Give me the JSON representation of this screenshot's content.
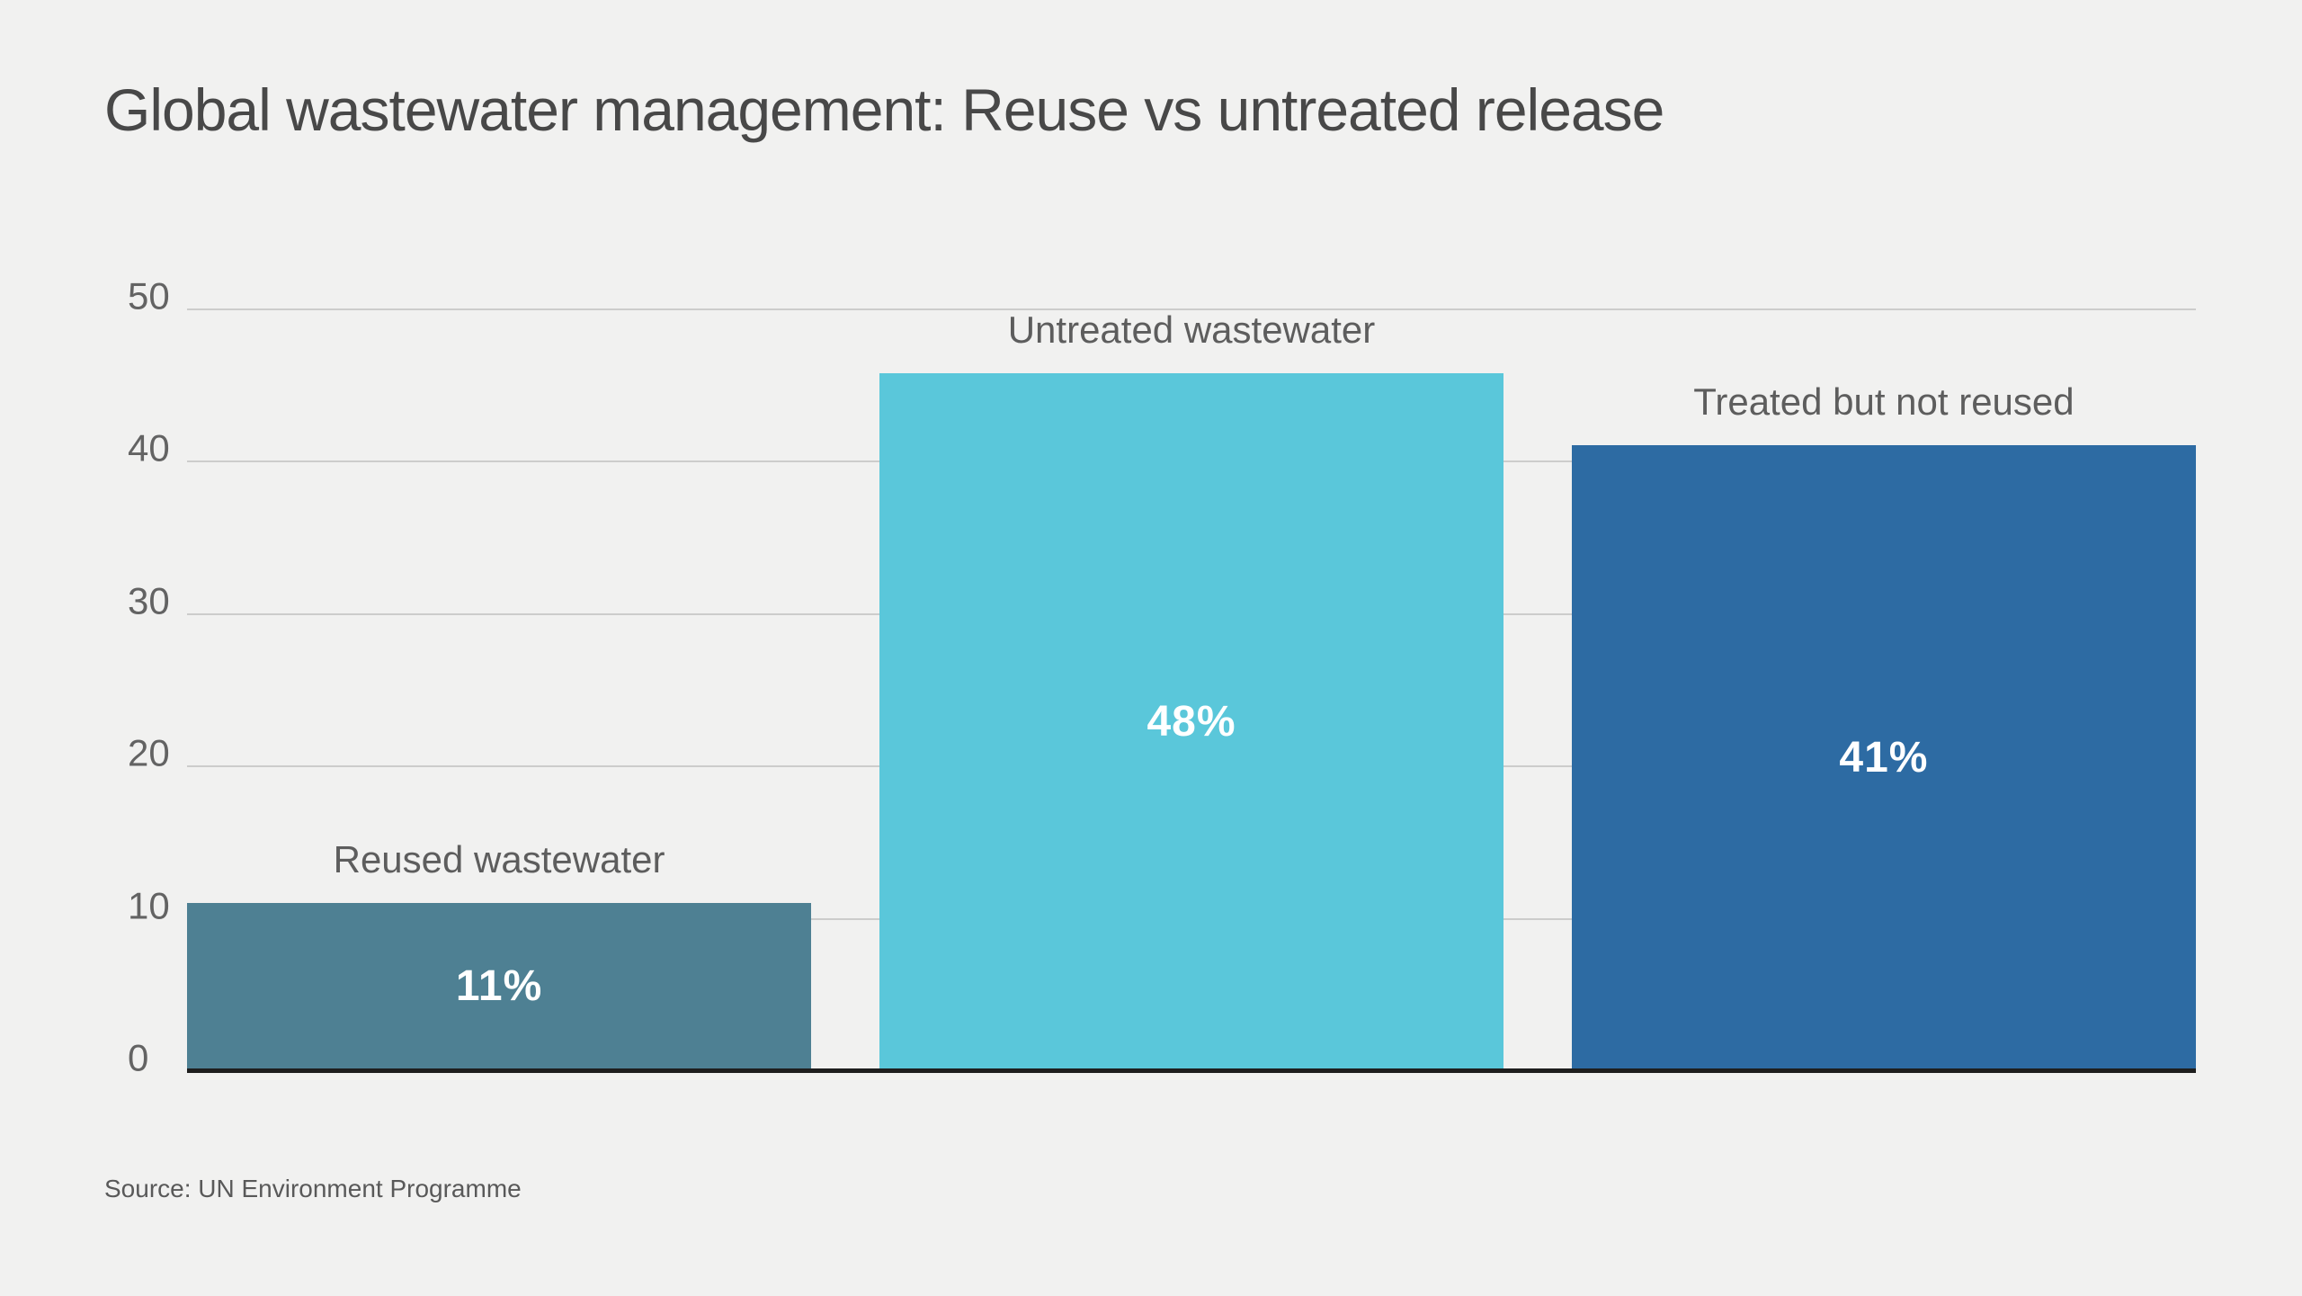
{
  "page": {
    "background_color": "#f1f1f0"
  },
  "chart_data": {
    "type": "bar",
    "title": "Global wastewater management: Reuse vs untreated release",
    "categories": [
      "Reused wastewater",
      "Untreated wastewater",
      "Treated but not reused"
    ],
    "values": [
      11,
      48,
      41
    ],
    "value_labels": [
      "11%",
      "48%",
      "41%"
    ],
    "colors": [
      "#4e8093",
      "#5ac7da",
      "#2d6ba3"
    ],
    "yticks": [
      0,
      10,
      20,
      30,
      40,
      50
    ],
    "ylim": [
      0,
      50
    ],
    "xlabel": "",
    "ylabel": "",
    "grid": true,
    "legend": false,
    "gridline_color": "#cccccb",
    "axis_line_color": "#1e1e1e",
    "value_label_color": "#ffffff",
    "source": "Source: UN Environment Programme"
  }
}
